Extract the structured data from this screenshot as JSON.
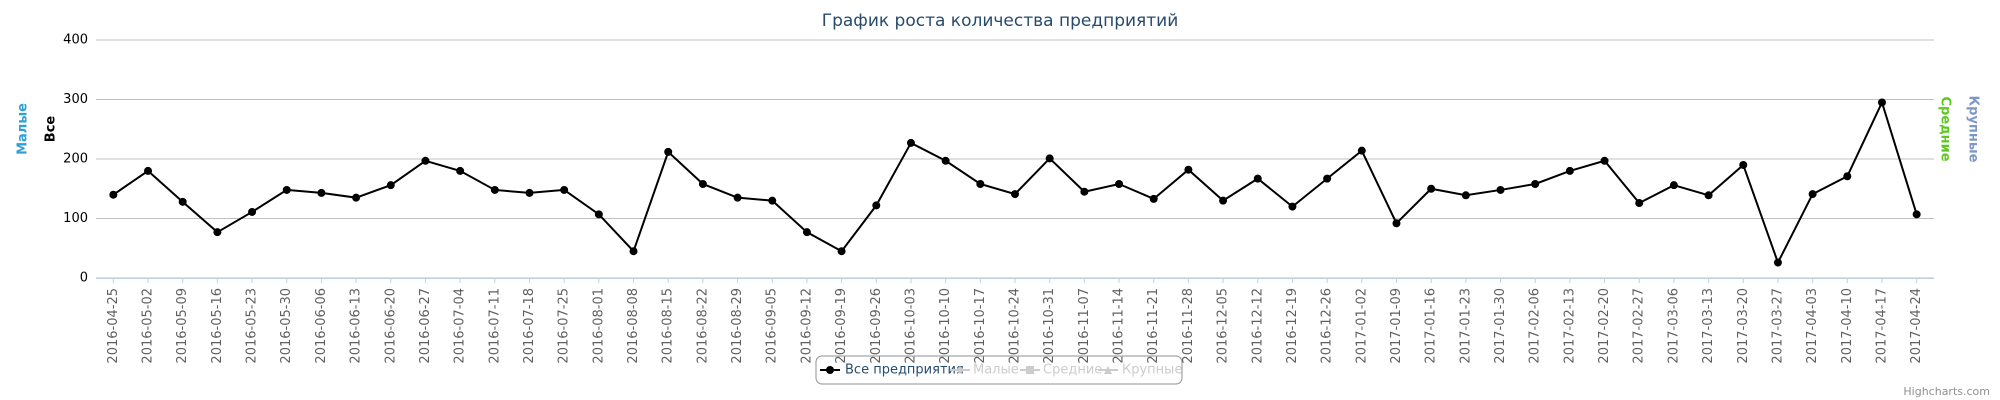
{
  "chart_data": {
    "type": "line",
    "title": "График роста количества предприятий",
    "categories": [
      "2016-04-25",
      "2016-05-02",
      "2016-05-09",
      "2016-05-16",
      "2016-05-23",
      "2016-05-30",
      "2016-06-06",
      "2016-06-13",
      "2016-06-20",
      "2016-06-27",
      "2016-07-04",
      "2016-07-11",
      "2016-07-18",
      "2016-07-25",
      "2016-08-01",
      "2016-08-08",
      "2016-08-15",
      "2016-08-22",
      "2016-08-29",
      "2016-09-05",
      "2016-09-12",
      "2016-09-19",
      "2016-09-26",
      "2016-10-03",
      "2016-10-10",
      "2016-10-17",
      "2016-10-24",
      "2016-10-31",
      "2016-11-07",
      "2016-11-14",
      "2016-11-21",
      "2016-11-28",
      "2016-12-05",
      "2016-12-12",
      "2016-12-19",
      "2016-12-26",
      "2017-01-02",
      "2017-01-09",
      "2017-01-16",
      "2017-01-23",
      "2017-01-30",
      "2017-02-06",
      "2017-02-13",
      "2017-02-20",
      "2017-02-27",
      "2017-03-06",
      "2017-03-13",
      "2017-03-20",
      "2017-03-27",
      "2017-04-03",
      "2017-04-10",
      "2017-04-17",
      "2017-04-24"
    ],
    "series": [
      {
        "name": "Все предприятия",
        "color": "#000000",
        "visible": true,
        "values": [
          140,
          180,
          128,
          77,
          111,
          148,
          143,
          135,
          156,
          197,
          180,
          148,
          143,
          148,
          107,
          45,
          212,
          158,
          135,
          130,
          77,
          45,
          122,
          227,
          197,
          158,
          141,
          201,
          145,
          158,
          133,
          182,
          130,
          167,
          120,
          167,
          214,
          92,
          150,
          139,
          148,
          158,
          180,
          197,
          126,
          156,
          139,
          190,
          26,
          141,
          171,
          295,
          107
        ]
      },
      {
        "name": "Малые",
        "color": "#2f9fd8",
        "visible": false
      },
      {
        "name": "Средние",
        "color": "#5dc71e",
        "visible": false
      },
      {
        "name": "Крупные",
        "color": "#7d96c8",
        "visible": false
      }
    ],
    "y_axis_titles": [
      {
        "text": "Малые",
        "color": "#2f9fd8",
        "side": "left"
      },
      {
        "text": "Все",
        "color": "#000000",
        "side": "left"
      },
      {
        "text": "Средние",
        "color": "#5dc71e",
        "side": "right"
      },
      {
        "text": "Крупные",
        "color": "#7d96c8",
        "side": "right"
      }
    ],
    "ylim": [
      0,
      400
    ],
    "yticks": [
      0,
      100,
      200,
      300,
      400
    ],
    "grid": true,
    "legend": "bottom",
    "credits": "Highcharts.com"
  }
}
